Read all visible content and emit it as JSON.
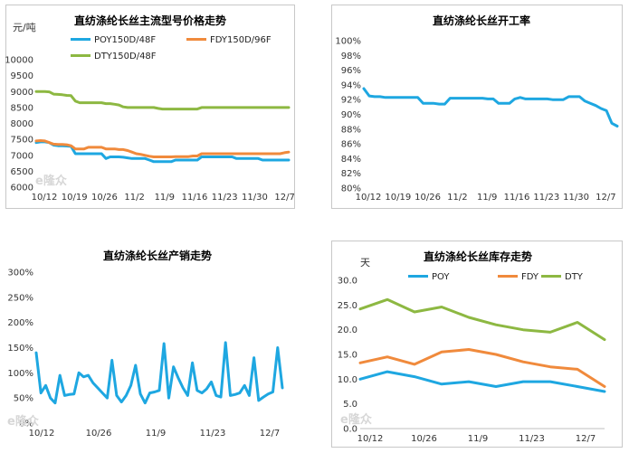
{
  "chart_data": [
    {
      "type": "line",
      "title": "直纺涤纶长丝主流型号价格走势",
      "ylabel": "元/吨",
      "xlabel": "",
      "ylim": [
        6000,
        10000
      ],
      "ytick_labels": [
        "6000",
        "6500",
        "7000",
        "7500",
        "8000",
        "8500",
        "9000",
        "9500",
        "10000"
      ],
      "x_tick_labels": [
        "10/12",
        "10/19",
        "10/26",
        "11/2",
        "11/9",
        "11/16",
        "11/23",
        "11/30",
        "12/7"
      ],
      "legend_position": "top-left",
      "grid": false,
      "series": [
        {
          "name": "POY150D/48F",
          "color": "#1ea7e1",
          "values": [
            7400,
            7420,
            7420,
            7400,
            7320,
            7300,
            7300,
            7290,
            7280,
            7050,
            7050,
            7050,
            7050,
            7050,
            7050,
            7050,
            6900,
            6950,
            6950,
            6950,
            6940,
            6920,
            6900,
            6900,
            6900,
            6900,
            6850,
            6800,
            6800,
            6800,
            6800,
            6800,
            6850,
            6850,
            6850,
            6850,
            6850,
            6850,
            6950,
            6950,
            6950,
            6950,
            6950,
            6950,
            6950,
            6950,
            6900,
            6900,
            6900,
            6900,
            6900,
            6900,
            6850,
            6850,
            6850,
            6850,
            6850,
            6850,
            6850
          ]
        },
        {
          "name": "FDY150D/96F",
          "color": "#f08a3c",
          "values": [
            7450,
            7460,
            7450,
            7400,
            7350,
            7340,
            7340,
            7330,
            7300,
            7200,
            7200,
            7200,
            7250,
            7250,
            7250,
            7250,
            7200,
            7200,
            7200,
            7180,
            7180,
            7150,
            7100,
            7050,
            7030,
            7000,
            6970,
            6950,
            6950,
            6950,
            6950,
            6950,
            6960,
            6960,
            6960,
            6960,
            6980,
            6980,
            7050,
            7050,
            7050,
            7050,
            7050,
            7050,
            7050,
            7050,
            7050,
            7050,
            7050,
            7050,
            7050,
            7050,
            7050,
            7050,
            7050,
            7050,
            7050,
            7080,
            7100
          ]
        },
        {
          "name": "DTY150D/48F",
          "color": "#8db842",
          "values": [
            9000,
            9000,
            9000,
            8990,
            8920,
            8910,
            8900,
            8880,
            8870,
            8700,
            8650,
            8650,
            8650,
            8650,
            8650,
            8650,
            8620,
            8620,
            8600,
            8580,
            8520,
            8500,
            8500,
            8500,
            8500,
            8500,
            8500,
            8500,
            8470,
            8450,
            8450,
            8450,
            8450,
            8450,
            8450,
            8450,
            8450,
            8450,
            8500,
            8500,
            8500,
            8500,
            8500,
            8500,
            8500,
            8500,
            8500,
            8500,
            8500,
            8500,
            8500,
            8500,
            8500,
            8500,
            8500,
            8500,
            8500,
            8500,
            8500
          ]
        }
      ]
    },
    {
      "type": "line",
      "title": "直纺涤纶长丝开工率",
      "ylabel": "",
      "xlabel": "",
      "ylim": [
        80,
        100
      ],
      "ytick_labels": [
        "80%",
        "82%",
        "84%",
        "86%",
        "88%",
        "90%",
        "92%",
        "94%",
        "96%",
        "98%",
        "100%"
      ],
      "x_tick_labels": [
        "10/12",
        "10/19",
        "10/26",
        "11/2",
        "11/9",
        "11/16",
        "11/23",
        "11/30",
        "12/7"
      ],
      "grid": false,
      "series": [
        {
          "name": "",
          "color": "#1ea7e1",
          "values": [
            93.5,
            92.5,
            92.4,
            92.4,
            92.3,
            92.3,
            92.3,
            92.3,
            92.3,
            92.3,
            92.3,
            91.5,
            91.5,
            91.5,
            91.4,
            91.4,
            92.2,
            92.2,
            92.2,
            92.2,
            92.2,
            92.2,
            92.2,
            92.1,
            92.1,
            91.5,
            91.5,
            91.5,
            92.1,
            92.3,
            92.1,
            92.1,
            92.1,
            92.1,
            92.1,
            92.0,
            92.0,
            92.0,
            92.4,
            92.4,
            92.4,
            91.8,
            91.5,
            91.2,
            90.8,
            90.5,
            88.8,
            88.4
          ]
        }
      ]
    },
    {
      "type": "line",
      "title": "直纺涤纶长丝产销走势",
      "ylabel": "",
      "xlabel": "",
      "ylim": [
        0,
        300
      ],
      "ytick_labels": [
        "0%",
        "50%",
        "100%",
        "150%",
        "200%",
        "250%",
        "300%"
      ],
      "x_tick_labels": [
        "10/12",
        "10/26",
        "11/9",
        "11/23",
        "12/7"
      ],
      "grid": false,
      "series": [
        {
          "name": "",
          "color": "#1ea7e1",
          "values": [
            140,
            60,
            75,
            50,
            40,
            95,
            55,
            57,
            58,
            100,
            92,
            95,
            80,
            70,
            60,
            50,
            125,
            55,
            42,
            55,
            75,
            115,
            58,
            40,
            60,
            62,
            65,
            158,
            50,
            112,
            90,
            70,
            55,
            120,
            65,
            60,
            68,
            82,
            55,
            52,
            160,
            55,
            57,
            60,
            75,
            55,
            130,
            45,
            52,
            58,
            62,
            150,
            70
          ]
        }
      ]
    },
    {
      "type": "line",
      "title": "直纺涤纶长丝库存走势",
      "ylabel": "天",
      "xlabel": "",
      "ylim": [
        0,
        30
      ],
      "ytick_labels": [
        "0.0",
        "5.0",
        "10.0",
        "15.0",
        "20.0",
        "25.0",
        "30.0"
      ],
      "x_tick_labels": [
        "10/12",
        "10/26",
        "11/9",
        "11/23",
        "12/7"
      ],
      "legend_position": "top",
      "grid": false,
      "series": [
        {
          "name": "POY",
          "color": "#1ea7e1",
          "values": [
            10.0,
            11.5,
            10.5,
            9.0,
            9.5,
            8.5,
            9.5,
            9.5,
            8.5,
            7.5
          ]
        },
        {
          "name": "FDY",
          "color": "#f08a3c",
          "values": [
            13.3,
            14.5,
            13.0,
            15.5,
            16.0,
            15.0,
            13.5,
            12.5,
            12.0,
            8.5
          ]
        },
        {
          "name": "DTY",
          "color": "#8db842",
          "values": [
            24.2,
            26.1,
            23.6,
            24.6,
            22.5,
            21.0,
            20.0,
            19.5,
            21.5,
            18.0
          ]
        }
      ]
    }
  ]
}
